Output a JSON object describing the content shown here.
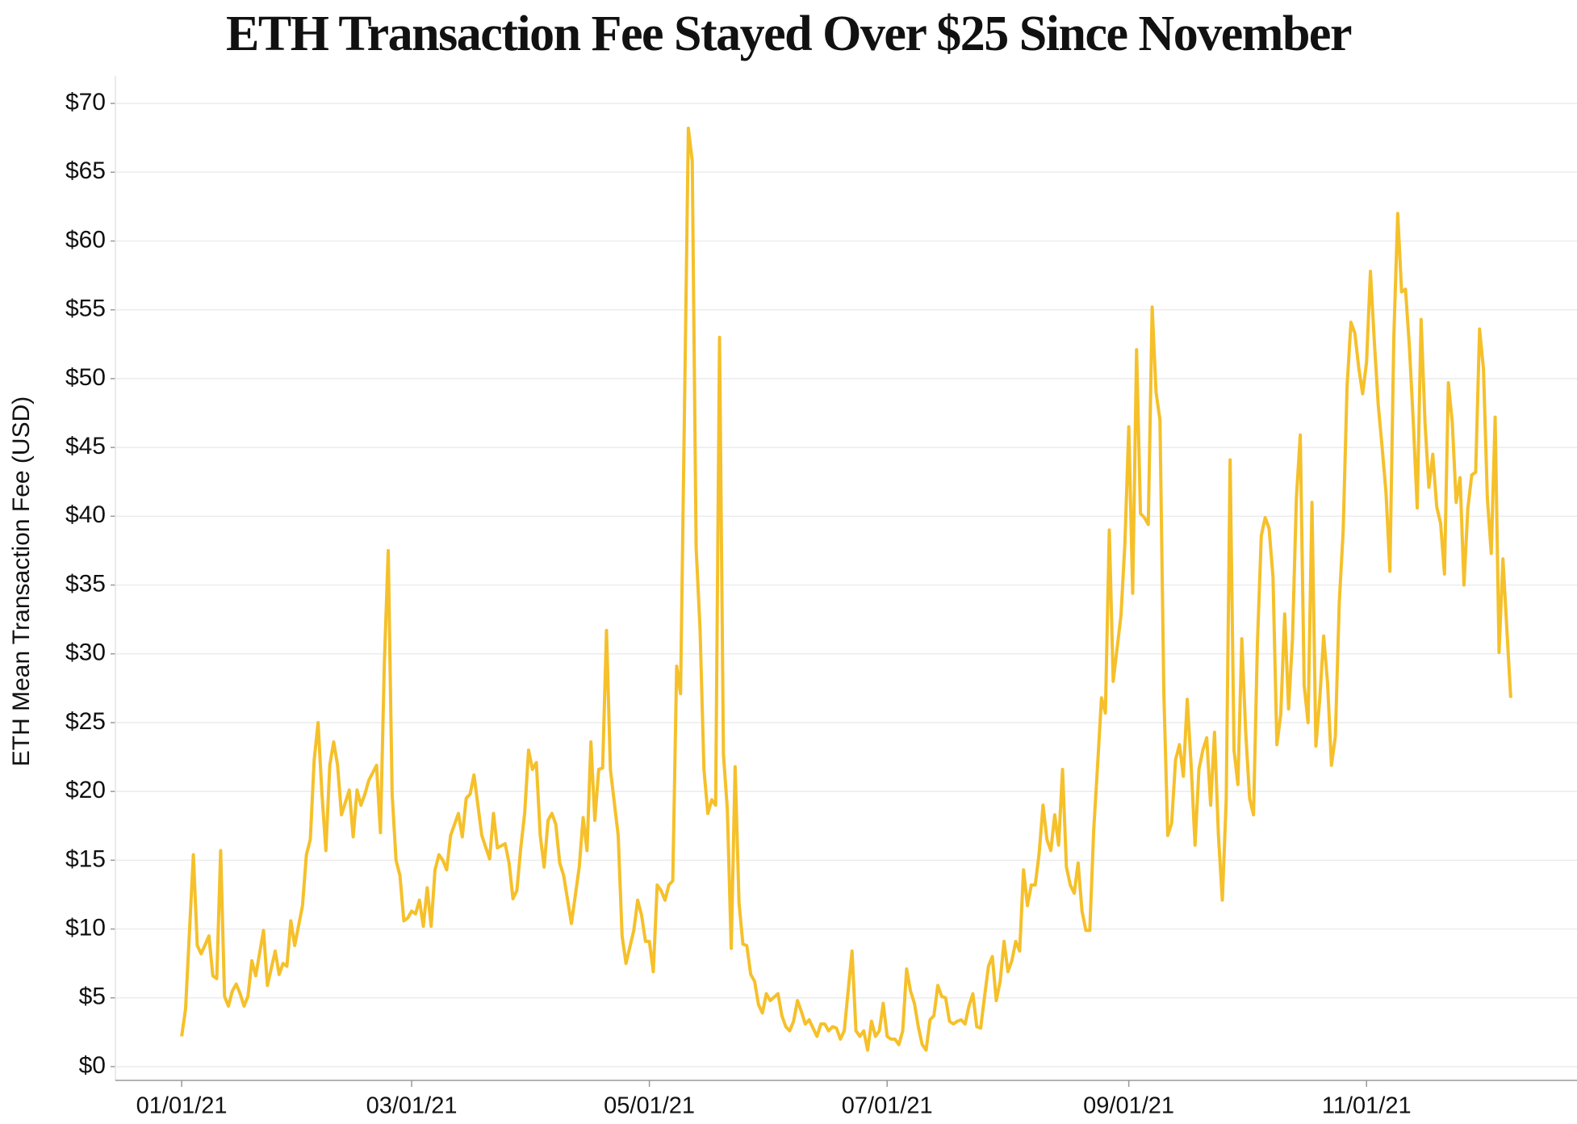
{
  "chart_data": {
    "type": "line",
    "title": "ETH Transaction Fee Stayed Over $25 Since November",
    "y_label": "ETH Mean Transaction Fee (USD)",
    "x": [
      "01/01/21",
      "01/02/21",
      "01/04/21",
      "01/05/21",
      "01/06/21",
      "01/08/21",
      "01/09/21",
      "01/10/21",
      "01/11/21",
      "01/12/21",
      "01/13/21",
      "01/14/21",
      "01/15/21",
      "01/16/21",
      "01/17/21",
      "01/18/21",
      "01/19/21",
      "01/20/21",
      "01/22/21",
      "01/23/21",
      "01/25/21",
      "01/26/21",
      "01/27/21",
      "01/28/21",
      "01/29/21",
      "01/30/21",
      "02/01/21",
      "02/02/21",
      "02/03/21",
      "02/04/21",
      "02/05/21",
      "02/06/21",
      "02/07/21",
      "02/08/21",
      "02/09/21",
      "02/10/21",
      "02/11/21",
      "02/13/21",
      "02/14/21",
      "02/15/21",
      "02/16/21",
      "02/17/21",
      "02/18/21",
      "02/20/21",
      "02/21/21",
      "02/22/21",
      "02/23/21",
      "02/24/21",
      "02/25/21",
      "02/26/21",
      "02/27/21",
      "02/28/21",
      "03/01/21",
      "03/02/21",
      "03/03/21",
      "03/04/21",
      "03/05/21",
      "03/06/21",
      "03/07/21",
      "03/08/21",
      "03/09/21",
      "03/10/21",
      "03/11/21",
      "03/13/21",
      "03/14/21",
      "03/15/21",
      "03/16/21",
      "03/17/21",
      "03/18/21",
      "03/19/21",
      "03/21/21",
      "03/22/21",
      "03/23/21",
      "03/25/21",
      "03/26/21",
      "03/27/21",
      "03/28/21",
      "03/29/21",
      "03/30/21",
      "03/31/21",
      "04/01/21",
      "04/02/21",
      "04/03/21",
      "04/04/21",
      "04/05/21",
      "04/06/21",
      "04/07/21",
      "04/08/21",
      "04/09/21",
      "04/11/21",
      "04/13/21",
      "04/14/21",
      "04/15/21",
      "04/16/21",
      "04/17/21",
      "04/18/21",
      "04/19/21",
      "04/20/21",
      "04/21/21",
      "04/23/21",
      "04/24/21",
      "04/25/21",
      "04/27/21",
      "04/28/21",
      "04/29/21",
      "04/30/21",
      "05/01/21",
      "05/02/21",
      "05/03/21",
      "05/04/21",
      "05/05/21",
      "05/06/21",
      "05/07/21",
      "05/08/21",
      "05/09/21",
      "05/11/21",
      "05/12/21",
      "05/13/21",
      "05/14/21",
      "05/15/21",
      "05/16/21",
      "05/17/21",
      "05/18/21",
      "05/19/21",
      "05/20/21",
      "05/21/21",
      "05/22/21",
      "05/23/21",
      "05/24/21",
      "05/25/21",
      "05/26/21",
      "05/27/21",
      "05/28/21",
      "05/29/21",
      "05/30/21",
      "05/31/21",
      "06/01/21",
      "06/03/21",
      "06/04/21",
      "06/05/21",
      "06/06/21",
      "06/07/21",
      "06/08/21",
      "06/09/21",
      "06/10/21",
      "06/11/21",
      "06/13/21",
      "06/14/21",
      "06/15/21",
      "06/16/21",
      "06/17/21",
      "06/18/21",
      "06/19/21",
      "06/20/21",
      "06/21/21",
      "06/22/21",
      "06/23/21",
      "06/24/21",
      "06/25/21",
      "06/26/21",
      "06/27/21",
      "06/28/21",
      "06/29/21",
      "06/30/21",
      "07/01/21",
      "07/02/21",
      "07/03/21",
      "07/04/21",
      "07/05/21",
      "07/06/21",
      "07/07/21",
      "07/08/21",
      "07/09/21",
      "07/10/21",
      "07/11/21",
      "07/12/21",
      "07/13/21",
      "07/14/21",
      "07/15/21",
      "07/16/21",
      "07/17/21",
      "07/18/21",
      "07/19/21",
      "07/20/21",
      "07/21/21",
      "07/22/21",
      "07/23/21",
      "07/24/21",
      "07/25/21",
      "07/26/21",
      "07/27/21",
      "07/28/21",
      "07/29/21",
      "07/30/21",
      "07/31/21",
      "08/01/21",
      "08/02/21",
      "08/03/21",
      "08/04/21",
      "08/05/21",
      "08/06/21",
      "08/07/21",
      "08/08/21",
      "08/09/21",
      "08/10/21",
      "08/11/21",
      "08/12/21",
      "08/13/21",
      "08/14/21",
      "08/15/21",
      "08/16/21",
      "08/17/21",
      "08/18/21",
      "08/19/21",
      "08/20/21",
      "08/21/21",
      "08/22/21",
      "08/23/21",
      "08/24/21",
      "08/25/21",
      "08/26/21",
      "08/27/21",
      "08/28/21",
      "08/29/21",
      "08/30/21",
      "08/31/21",
      "09/01/21",
      "09/02/21",
      "09/03/21",
      "09/04/21",
      "09/05/21",
      "09/06/21",
      "09/07/21",
      "09/08/21",
      "09/09/21",
      "09/10/21",
      "09/11/21",
      "09/12/21",
      "09/13/21",
      "09/14/21",
      "09/15/21",
      "09/16/21",
      "09/17/21",
      "09/18/21",
      "09/19/21",
      "09/20/21",
      "09/21/21",
      "09/22/21",
      "09/23/21",
      "09/24/21",
      "09/25/21",
      "09/26/21",
      "09/27/21",
      "09/28/21",
      "09/29/21",
      "09/30/21",
      "10/01/21",
      "10/02/21",
      "10/03/21",
      "10/04/21",
      "10/05/21",
      "10/06/21",
      "10/07/21",
      "10/08/21",
      "10/09/21",
      "10/10/21",
      "10/11/21",
      "10/12/21",
      "10/13/21",
      "10/14/21",
      "10/15/21",
      "10/16/21",
      "10/17/21",
      "10/18/21",
      "10/19/21",
      "10/20/21",
      "10/21/21",
      "10/22/21",
      "10/23/21",
      "10/24/21",
      "10/25/21",
      "10/26/21",
      "10/27/21",
      "10/28/21",
      "10/29/21",
      "10/30/21",
      "10/31/21",
      "11/01/21",
      "11/02/21",
      "11/03/21",
      "11/04/21",
      "11/05/21",
      "11/06/21",
      "11/07/21",
      "11/08/21",
      "11/09/21",
      "11/10/21",
      "11/11/21",
      "11/12/21",
      "11/13/21",
      "11/14/21",
      "11/15/21",
      "11/16/21",
      "11/17/21",
      "11/18/21",
      "11/19/21",
      "11/20/21",
      "11/21/21",
      "11/22/21",
      "11/23/21",
      "11/24/21",
      "11/25/21",
      "11/26/21",
      "11/27/21",
      "11/28/21",
      "11/29/21",
      "11/30/21",
      "12/01/21",
      "12/02/21",
      "12/03/21",
      "12/04/21",
      "12/05/21",
      "12/06/21",
      "12/07/21",
      "12/08/21"
    ],
    "series": [
      {
        "name": "ETH Mean Transaction Fee",
        "color": "#f5c02a",
        "values": [
          2.2,
          4.2,
          15.4,
          8.8,
          8.2,
          9.5,
          6.6,
          6.4,
          15.7,
          5.1,
          4.4,
          5.5,
          6.0,
          5.3,
          4.4,
          5.1,
          7.7,
          6.6,
          9.9,
          5.9,
          8.4,
          6.7,
          7.5,
          7.3,
          10.6,
          8.8,
          11.7,
          15.4,
          16.5,
          22.3,
          25.0,
          19.8,
          15.7,
          21.9,
          23.6,
          21.9,
          18.3,
          20.1,
          16.7,
          20.1,
          19.0,
          19.8,
          20.8,
          21.9,
          17.0,
          29.3,
          37.5,
          19.8,
          15.0,
          13.9,
          10.6,
          10.8,
          11.3,
          11.1,
          12.1,
          10.2,
          13.0,
          10.2,
          14.3,
          15.4,
          15.0,
          14.3,
          16.8,
          18.4,
          16.7,
          19.5,
          19.8,
          21.2,
          19.0,
          16.8,
          15.1,
          18.4,
          15.9,
          16.2,
          14.8,
          12.2,
          12.8,
          15.9,
          18.4,
          23.0,
          21.6,
          22.1,
          16.8,
          14.5,
          17.9,
          18.4,
          17.6,
          14.8,
          13.9,
          10.4,
          14.5,
          18.1,
          15.7,
          23.6,
          17.9,
          21.6,
          21.7,
          31.7,
          21.6,
          16.8,
          9.5,
          7.5,
          9.9,
          12.1,
          11.0,
          9.1,
          9.1,
          6.9,
          13.2,
          12.8,
          12.1,
          13.2,
          13.5,
          29.1,
          27.1,
          68.2,
          65.8,
          37.7,
          31.8,
          21.6,
          18.4,
          19.4,
          19.0,
          53.0,
          22.7,
          18.7,
          8.6,
          21.8,
          11.9,
          8.9,
          8.8,
          6.7,
          6.2,
          4.5,
          3.9,
          5.3,
          4.8,
          5.3,
          3.7,
          2.9,
          2.6,
          3.3,
          4.8,
          4.0,
          3.1,
          3.4,
          2.2,
          3.1,
          3.1,
          2.6,
          2.9,
          2.8,
          2.0,
          2.6,
          5.5,
          8.4,
          2.6,
          2.2,
          2.6,
          1.2,
          3.3,
          2.2,
          2.6,
          4.6,
          2.2,
          2.0,
          2.0,
          1.6,
          2.6,
          7.1,
          5.5,
          4.6,
          2.9,
          1.6,
          1.2,
          3.4,
          3.7,
          5.9,
          5.1,
          5.0,
          3.3,
          3.1,
          3.3,
          3.4,
          3.1,
          4.4,
          5.3,
          2.9,
          2.8,
          5.1,
          7.3,
          8.0,
          4.8,
          6.2,
          9.1,
          6.9,
          7.7,
          9.1,
          8.4,
          14.3,
          11.7,
          13.2,
          13.2,
          15.5,
          19.0,
          16.5,
          15.7,
          18.3,
          16.1,
          21.6,
          14.5,
          13.2,
          12.6,
          14.8,
          11.3,
          9.9,
          9.9,
          17.2,
          21.9,
          26.8,
          25.7,
          39.0,
          28.0,
          30.4,
          32.8,
          38.0,
          46.5,
          34.4,
          52.1,
          40.2,
          39.9,
          39.4,
          55.2,
          49.0,
          47.0,
          27.1,
          16.8,
          17.7,
          22.3,
          23.4,
          21.1,
          26.7,
          21.9,
          16.1,
          21.6,
          23.0,
          23.9,
          19.0,
          24.3,
          16.8,
          12.1,
          19.4,
          44.1,
          23.0,
          20.5,
          31.1,
          24.3,
          19.5,
          18.3,
          30.7,
          38.6,
          39.9,
          39.1,
          35.6,
          23.4,
          25.6,
          32.9,
          26.0,
          31.1,
          41.3,
          45.9,
          27.7,
          25.0,
          41.0,
          23.3,
          26.7,
          31.3,
          27.9,
          21.9,
          24.0,
          33.7,
          38.9,
          49.4,
          54.1,
          53.3,
          50.8,
          48.9,
          51.2,
          57.8,
          52.7,
          48.1,
          45.0,
          41.7,
          36.0,
          53.0,
          62.0,
          56.3,
          56.5,
          52.3,
          46.8,
          40.6,
          54.3,
          46.8,
          42.1,
          44.5,
          40.7,
          39.5,
          35.8,
          49.7,
          46.8,
          41.0,
          42.8,
          35.0,
          40.6,
          43.0,
          43.2,
          53.6,
          50.7,
          41.3,
          37.3,
          47.2,
          30.1,
          36.9,
          31.8,
          26.8
        ]
      }
    ],
    "xlim": [
      "12/15/20",
      "12/25/21"
    ],
    "xticks": [
      "01/01/21",
      "03/01/21",
      "05/01/21",
      "07/01/21",
      "09/01/21",
      "11/01/21"
    ],
    "ylim": [
      -1,
      72
    ],
    "yticks": [
      {
        "value": 0,
        "label": "$0"
      },
      {
        "value": 5,
        "label": "$5"
      },
      {
        "value": 10,
        "label": "$10"
      },
      {
        "value": 15,
        "label": "$15"
      },
      {
        "value": 20,
        "label": "$20"
      },
      {
        "value": 25,
        "label": "$25"
      },
      {
        "value": 30,
        "label": "$30"
      },
      {
        "value": 35,
        "label": "$35"
      },
      {
        "value": 40,
        "label": "$40"
      },
      {
        "value": 45,
        "label": "$45"
      },
      {
        "value": 50,
        "label": "$50"
      },
      {
        "value": 55,
        "label": "$55"
      },
      {
        "value": 60,
        "label": "$60"
      },
      {
        "value": 65,
        "label": "$65"
      },
      {
        "value": 70,
        "label": "$70"
      }
    ],
    "grid": true
  }
}
